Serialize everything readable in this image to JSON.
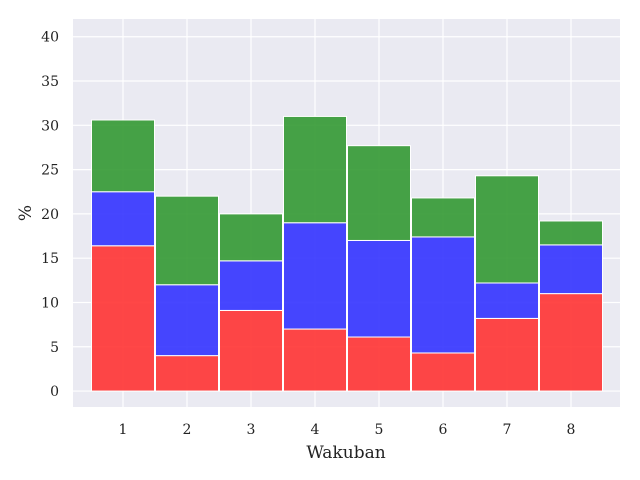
{
  "chart_data": {
    "type": "bar",
    "stacked": true,
    "title": "",
    "xlabel": "Wakuban",
    "ylabel": "%",
    "categories": [
      "1",
      "2",
      "3",
      "4",
      "5",
      "6",
      "7",
      "8"
    ],
    "ylim": [
      -1.8,
      42
    ],
    "yticks": [
      0,
      5,
      10,
      15,
      20,
      25,
      30,
      35,
      40
    ],
    "grid": true,
    "series": [
      {
        "values": [
          16.4,
          4.0,
          9.1,
          7.0,
          6.1,
          4.3,
          8.2,
          11.0
        ],
        "color": "#ff3333"
      },
      {
        "values": [
          6.1,
          8.0,
          5.6,
          12.0,
          10.9,
          13.1,
          4.0,
          5.5
        ],
        "color": "#3333ff"
      },
      {
        "values": [
          8.1,
          10.0,
          5.3,
          12.0,
          10.7,
          4.4,
          12.1,
          2.7
        ],
        "color": "#339933"
      }
    ],
    "colors": {
      "plot_background": "#eaeaf2",
      "grid": "#ffffff"
    }
  }
}
